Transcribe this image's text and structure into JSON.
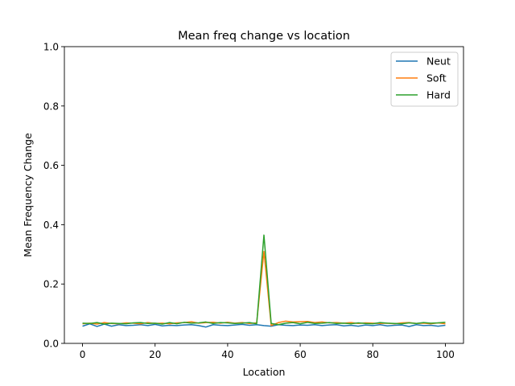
{
  "chart_data": {
    "type": "line",
    "title": "Mean freq change vs location",
    "xlabel": "Location",
    "ylabel": "Mean Frequency Change",
    "xlim": [
      -5,
      105
    ],
    "ylim": [
      0,
      1.0
    ],
    "xticks": [
      0,
      20,
      40,
      60,
      80,
      100
    ],
    "yticks": [
      0.0,
      0.2,
      0.4,
      0.6,
      0.8,
      1.0
    ],
    "x": [
      0,
      2,
      4,
      6,
      8,
      10,
      12,
      14,
      16,
      18,
      20,
      22,
      24,
      26,
      28,
      30,
      32,
      34,
      36,
      38,
      40,
      42,
      44,
      46,
      48,
      50,
      52,
      54,
      56,
      58,
      60,
      62,
      64,
      66,
      68,
      70,
      72,
      74,
      76,
      78,
      80,
      82,
      84,
      86,
      88,
      90,
      92,
      94,
      96,
      98,
      100
    ],
    "legend": "top-right",
    "grid": false,
    "series": [
      {
        "name": "Neut",
        "color": "#1f77b4",
        "values": [
          0.058,
          0.066,
          0.057,
          0.065,
          0.058,
          0.063,
          0.06,
          0.061,
          0.063,
          0.06,
          0.064,
          0.059,
          0.061,
          0.06,
          0.062,
          0.063,
          0.06,
          0.055,
          0.063,
          0.061,
          0.06,
          0.062,
          0.064,
          0.061,
          0.063,
          0.06,
          0.058,
          0.063,
          0.061,
          0.06,
          0.062,
          0.061,
          0.063,
          0.06,
          0.062,
          0.063,
          0.059,
          0.061,
          0.058,
          0.062,
          0.06,
          0.063,
          0.059,
          0.061,
          0.062,
          0.057,
          0.063,
          0.06,
          0.061,
          0.058,
          0.061
        ]
      },
      {
        "name": "Soft",
        "color": "#ff7f0e",
        "values": [
          0.066,
          0.068,
          0.065,
          0.07,
          0.067,
          0.066,
          0.069,
          0.068,
          0.066,
          0.07,
          0.067,
          0.068,
          0.066,
          0.069,
          0.07,
          0.073,
          0.068,
          0.07,
          0.071,
          0.068,
          0.071,
          0.068,
          0.07,
          0.067,
          0.069,
          0.31,
          0.06,
          0.07,
          0.075,
          0.072,
          0.073,
          0.074,
          0.07,
          0.072,
          0.069,
          0.07,
          0.068,
          0.07,
          0.067,
          0.069,
          0.068,
          0.067,
          0.068,
          0.066,
          0.069,
          0.07,
          0.067,
          0.068,
          0.066,
          0.069,
          0.066
        ]
      },
      {
        "name": "Hard",
        "color": "#2ca02c",
        "values": [
          0.068,
          0.067,
          0.07,
          0.065,
          0.068,
          0.067,
          0.066,
          0.069,
          0.07,
          0.067,
          0.068,
          0.065,
          0.07,
          0.066,
          0.071,
          0.068,
          0.069,
          0.072,
          0.067,
          0.07,
          0.069,
          0.067,
          0.068,
          0.07,
          0.066,
          0.365,
          0.067,
          0.063,
          0.068,
          0.07,
          0.066,
          0.071,
          0.067,
          0.068,
          0.07,
          0.067,
          0.068,
          0.066,
          0.069,
          0.067,
          0.066,
          0.07,
          0.068,
          0.067,
          0.066,
          0.069,
          0.067,
          0.07,
          0.068,
          0.069,
          0.071
        ]
      }
    ]
  }
}
